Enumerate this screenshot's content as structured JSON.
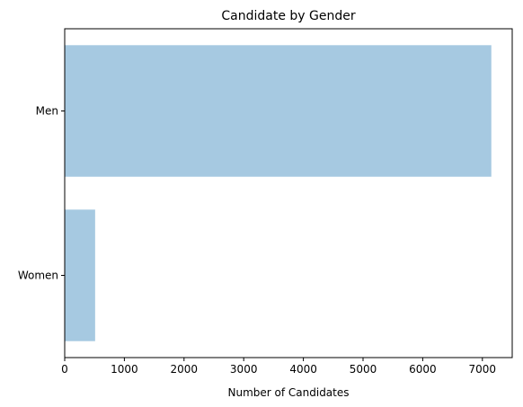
{
  "chart_data": {
    "type": "bar",
    "orientation": "horizontal",
    "title": "Candidate by Gender",
    "xlabel": "Number of Candidates",
    "ylabel": "",
    "categories": [
      "Men",
      "Women"
    ],
    "values": [
      7150,
      510
    ],
    "xlim": [
      0,
      7500
    ],
    "xticks": [
      0,
      1000,
      2000,
      3000,
      4000,
      5000,
      6000,
      7000
    ],
    "bar_color": "#a6c9e1",
    "grid": false,
    "legend": "none"
  }
}
